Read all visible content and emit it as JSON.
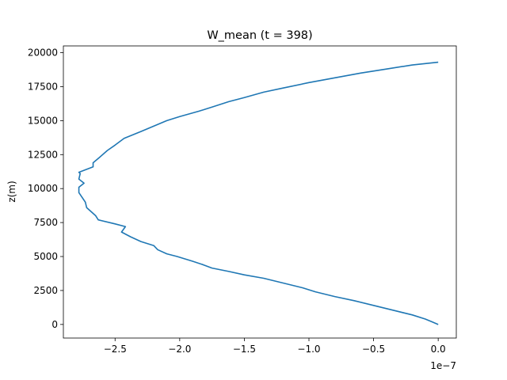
{
  "chart_data": {
    "type": "line",
    "title": "W_mean (t = 398)",
    "xlabel": "",
    "ylabel": "z(m)",
    "x_offset_label": "1e−7",
    "x_scale": 1e-07,
    "xlim": [
      -2.9,
      0.14
    ],
    "ylim": [
      -1000,
      20500
    ],
    "x_ticks": [
      -2.5,
      -2.0,
      -1.5,
      -1.0,
      -0.5,
      0.0
    ],
    "x_tick_labels": [
      "−2.5",
      "−2.0",
      "−1.5",
      "−1.0",
      "−0.5",
      "0.0"
    ],
    "y_ticks": [
      0,
      2500,
      5000,
      7500,
      10000,
      12500,
      15000,
      17500,
      20000
    ],
    "y_tick_labels": [
      "0",
      "2500",
      "5000",
      "7500",
      "10000",
      "12500",
      "15000",
      "17500",
      "20000"
    ],
    "grid": false,
    "line_color": "#1f77b4",
    "series": [
      {
        "x": [
          0.0,
          -0.05,
          -0.1,
          -0.2,
          -0.35,
          -0.5,
          -0.65,
          -0.8,
          -0.95,
          -1.05,
          -1.2,
          -1.35,
          -1.5,
          -1.62,
          -1.75,
          -1.82,
          -1.9,
          -2.02,
          -2.1,
          -2.17,
          -2.2,
          -2.3,
          -2.38,
          -2.45,
          -2.42,
          -2.5,
          -2.63,
          -2.65,
          -2.72,
          -2.73,
          -2.78,
          -2.78,
          -2.74,
          -2.78,
          -2.77,
          -2.78,
          -2.67,
          -2.67,
          -2.62,
          -2.56,
          -2.5,
          -2.43,
          -2.3,
          -2.2,
          -2.1,
          -2.0,
          -1.85,
          -1.75,
          -1.62,
          -1.5,
          -1.35,
          -1.2,
          -1.0,
          -0.8,
          -0.6,
          -0.4,
          -0.2,
          0.0
        ],
        "y": [
          0,
          200,
          400,
          700,
          1050,
          1400,
          1750,
          2050,
          2400,
          2700,
          3050,
          3400,
          3650,
          3900,
          4150,
          4400,
          4650,
          5000,
          5200,
          5500,
          5800,
          6100,
          6450,
          6800,
          7200,
          7400,
          7700,
          8000,
          8600,
          9000,
          9700,
          10100,
          10400,
          10700,
          11100,
          11200,
          11600,
          11900,
          12300,
          12800,
          13200,
          13700,
          14200,
          14600,
          15000,
          15300,
          15700,
          16000,
          16400,
          16700,
          17100,
          17400,
          17800,
          18150,
          18500,
          18800,
          19100,
          19300
        ]
      }
    ]
  }
}
